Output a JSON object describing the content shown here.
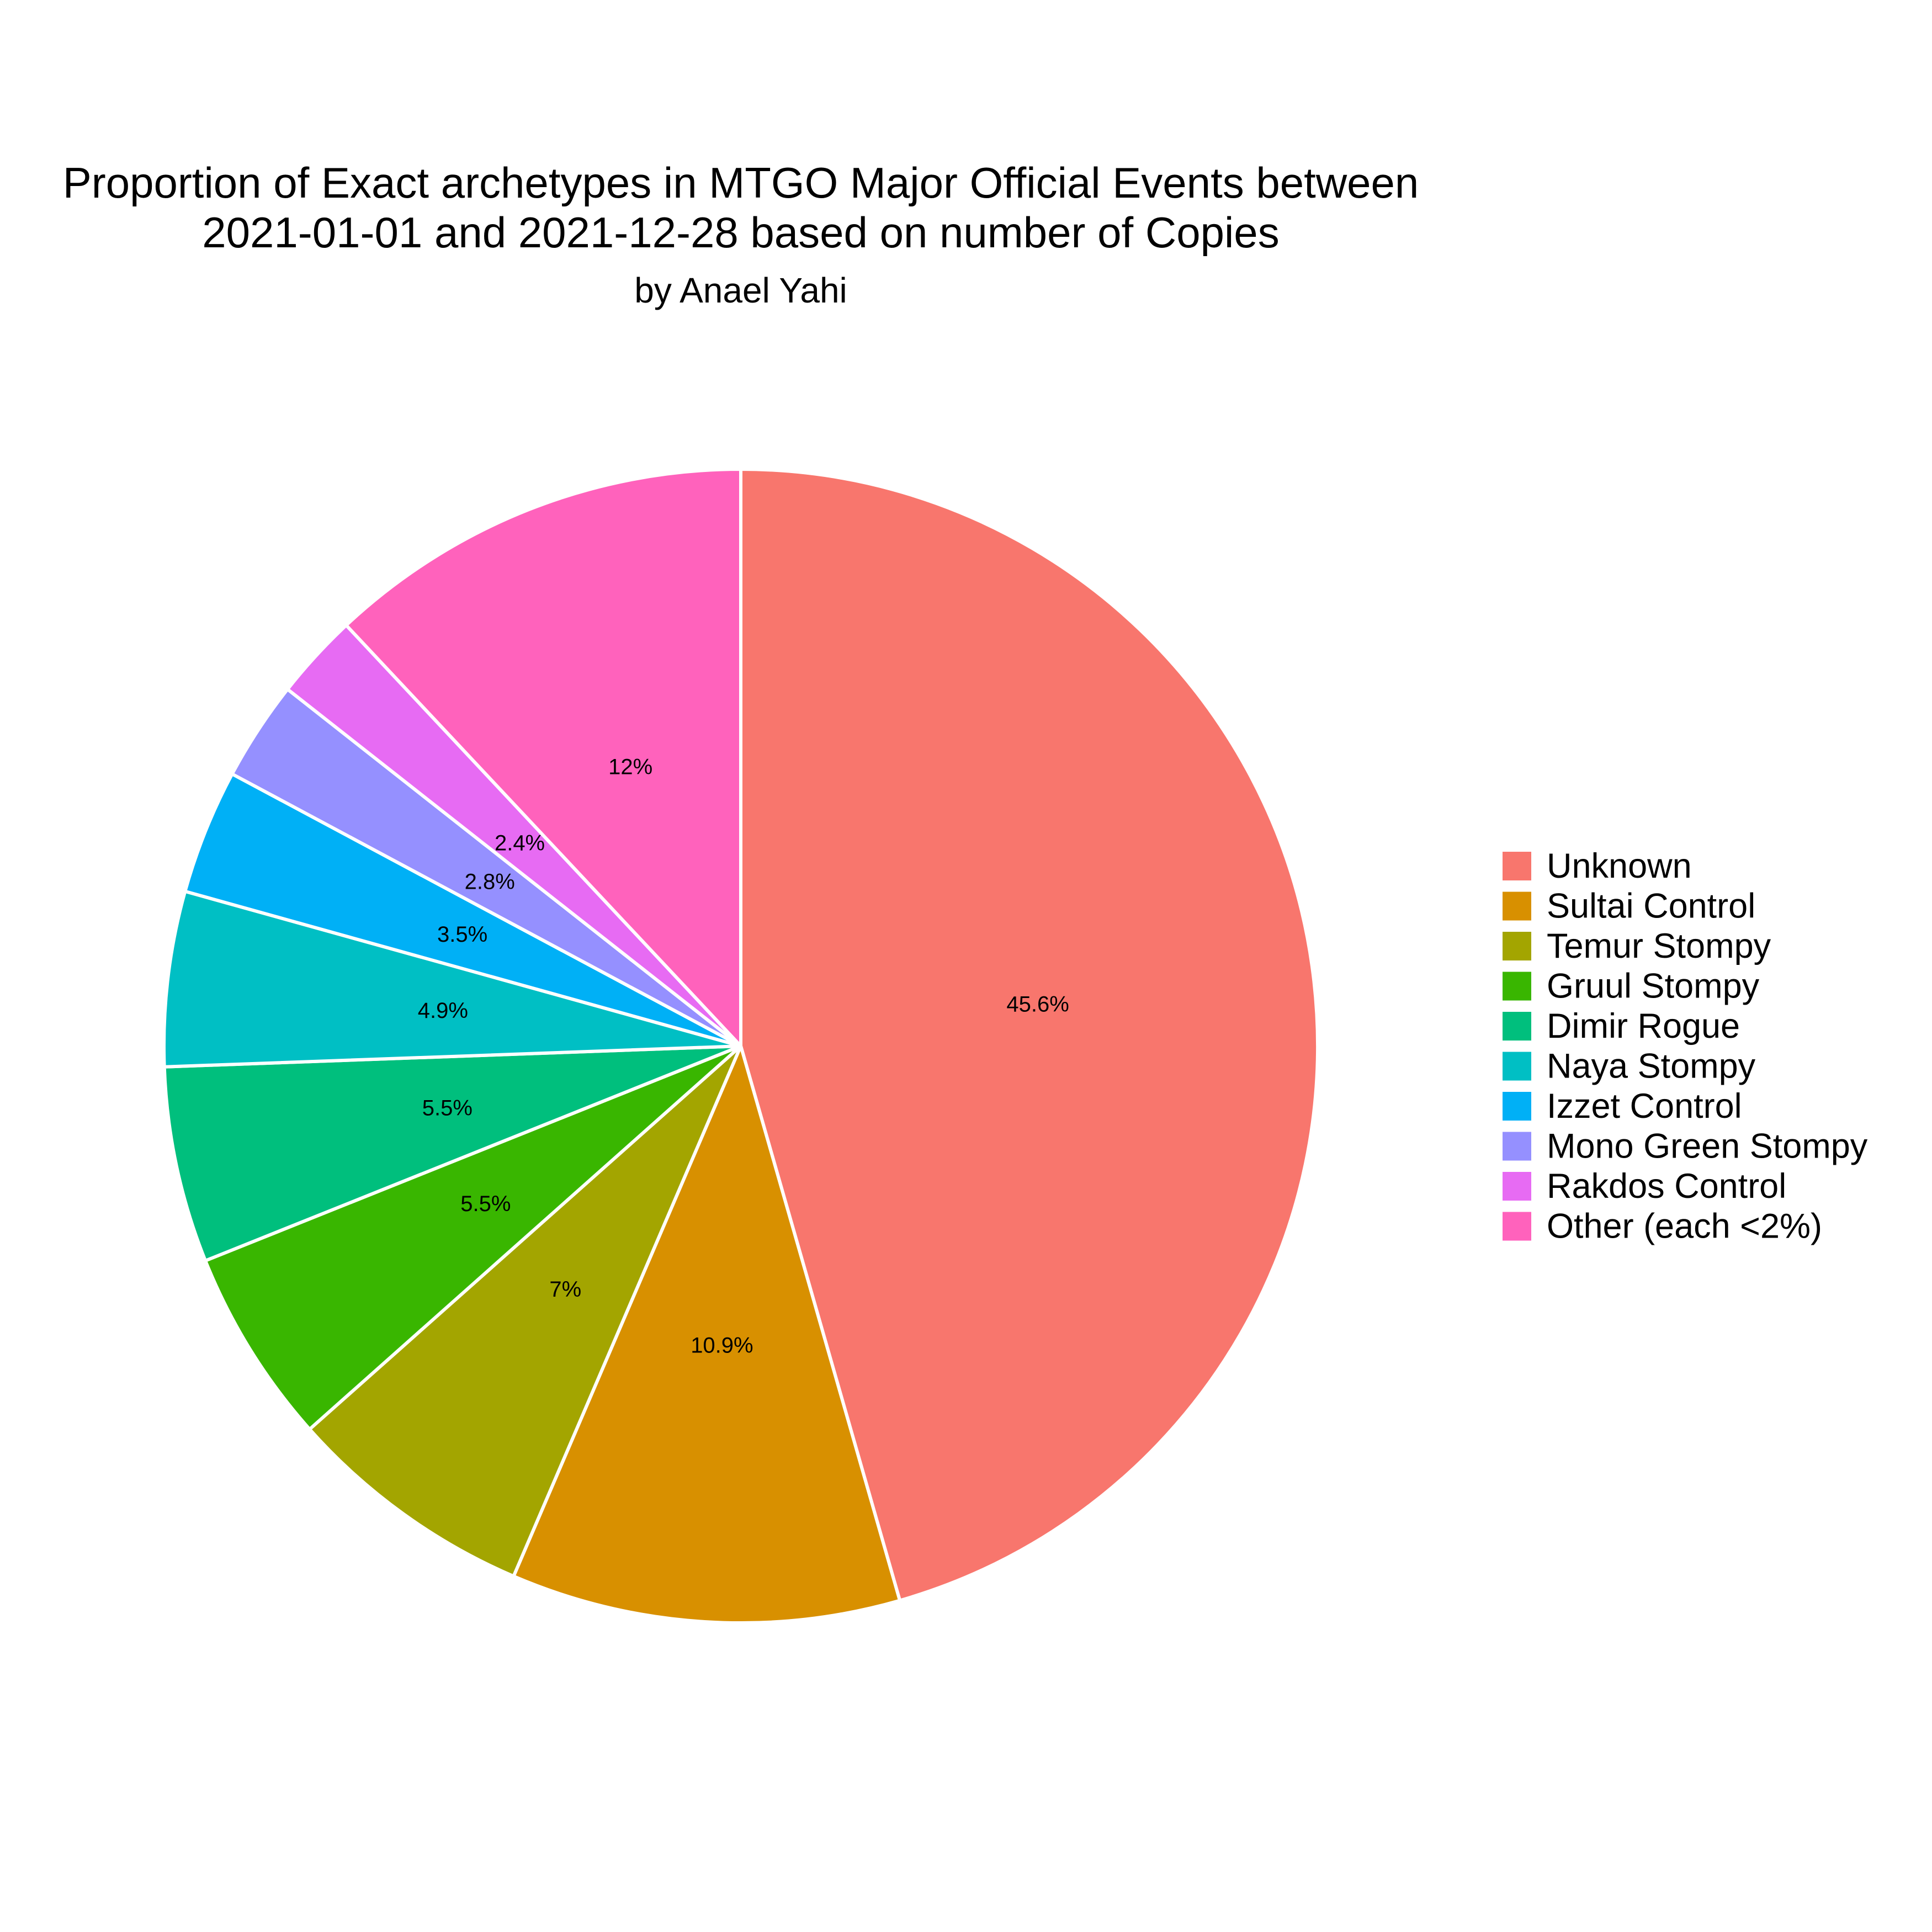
{
  "chart_data": {
    "type": "pie",
    "title_lines": [
      "Proportion of Exact archetypes in MTGO Major Official Events between",
      "2021-01-01 and 2021-12-28 based on number of Copies"
    ],
    "subtitle": "by Anael Yahi",
    "start": "12 o'clock",
    "direction": "clockwise",
    "legend_position": "right",
    "slices": [
      {
        "name": "Unknown",
        "value": 45.6,
        "label": "45.6%",
        "color": "#F8766D"
      },
      {
        "name": "Sultai Control",
        "value": 10.9,
        "label": "10.9%",
        "color": "#D89000"
      },
      {
        "name": "Temur Stompy",
        "value": 7.0,
        "label": "7%",
        "color": "#A3A500"
      },
      {
        "name": "Gruul Stompy",
        "value": 5.5,
        "label": "5.5%",
        "color": "#39B600"
      },
      {
        "name": "Dimir Rogue",
        "value": 5.5,
        "label": "5.5%",
        "color": "#00BF7D"
      },
      {
        "name": "Naya Stompy",
        "value": 4.9,
        "label": "4.9%",
        "color": "#00BFC4"
      },
      {
        "name": "Izzet Control",
        "value": 3.5,
        "label": "3.5%",
        "color": "#00B0F6"
      },
      {
        "name": "Mono Green Stompy",
        "value": 2.8,
        "label": "2.8%",
        "color": "#9590FF"
      },
      {
        "name": "Rakdos Control",
        "value": 2.4,
        "label": "2.4%",
        "color": "#E76BF3"
      },
      {
        "name": "Other (each <2%)",
        "value": 12.0,
        "label": "12%",
        "color": "#FF62BC"
      }
    ]
  }
}
